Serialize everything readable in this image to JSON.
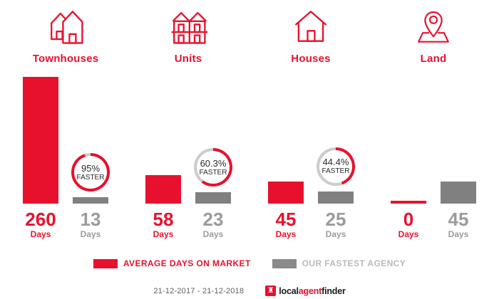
{
  "colors": {
    "red": "#e8112d",
    "gray_bar": "#808080",
    "ring_gray": "#cccccc",
    "muted_text": "#9b9b9b",
    "legend_gray_text": "#b9b9b9"
  },
  "chart_data": {
    "type": "bar",
    "categories": [
      "Townhouses",
      "Units",
      "Houses",
      "Land"
    ],
    "series": [
      {
        "name": "AVERAGE DAYS ON MARKET",
        "color": "#e8112d",
        "values": [
          260,
          58,
          45,
          0
        ]
      },
      {
        "name": "OUR FASTEST AGENCY",
        "color": "#808080",
        "values": [
          13,
          23,
          25,
          45
        ]
      }
    ],
    "unit": "Days",
    "ylim": [
      0,
      260
    ],
    "grid": false,
    "legend_position": "bottom",
    "annotations": [
      {
        "category": "Townhouses",
        "text": "95% FASTER"
      },
      {
        "category": "Units",
        "text": "60.3% FASTER"
      },
      {
        "category": "Houses",
        "text": "44.4% FASTER"
      }
    ]
  },
  "groups": [
    {
      "label": "Townhouses",
      "market": {
        "value": "260",
        "unit": "Days",
        "days": 260
      },
      "agency": {
        "value": "13",
        "unit": "Days",
        "days": 13
      },
      "badge": {
        "percent": "95%",
        "label": "FASTER",
        "fraction": 95
      }
    },
    {
      "label": "Units",
      "market": {
        "value": "58",
        "unit": "Days",
        "days": 58
      },
      "agency": {
        "value": "23",
        "unit": "Days",
        "days": 23
      },
      "badge": {
        "percent": "60.3%",
        "label": "FASTER",
        "fraction": 60.3
      }
    },
    {
      "label": "Houses",
      "market": {
        "value": "45",
        "unit": "Days",
        "days": 45
      },
      "agency": {
        "value": "25",
        "unit": "Days",
        "days": 25
      },
      "badge": {
        "percent": "44.4%",
        "label": "FASTER",
        "fraction": 44.4
      }
    },
    {
      "label": "Land",
      "market": {
        "value": "0",
        "unit": "Days",
        "days": 0
      },
      "agency": {
        "value": "45",
        "unit": "Days",
        "days": 45
      },
      "badge": null
    }
  ],
  "legend": [
    {
      "label": "AVERAGE DAYS ON MARKET"
    },
    {
      "label": "OUR FASTEST AGENCY"
    }
  ],
  "footer": {
    "date_range": "21-12-2017 - 21-12-2018",
    "logo": {
      "prefix": "local",
      "accent": "agent",
      "suffix": "finder",
      "mark": "♜"
    }
  }
}
